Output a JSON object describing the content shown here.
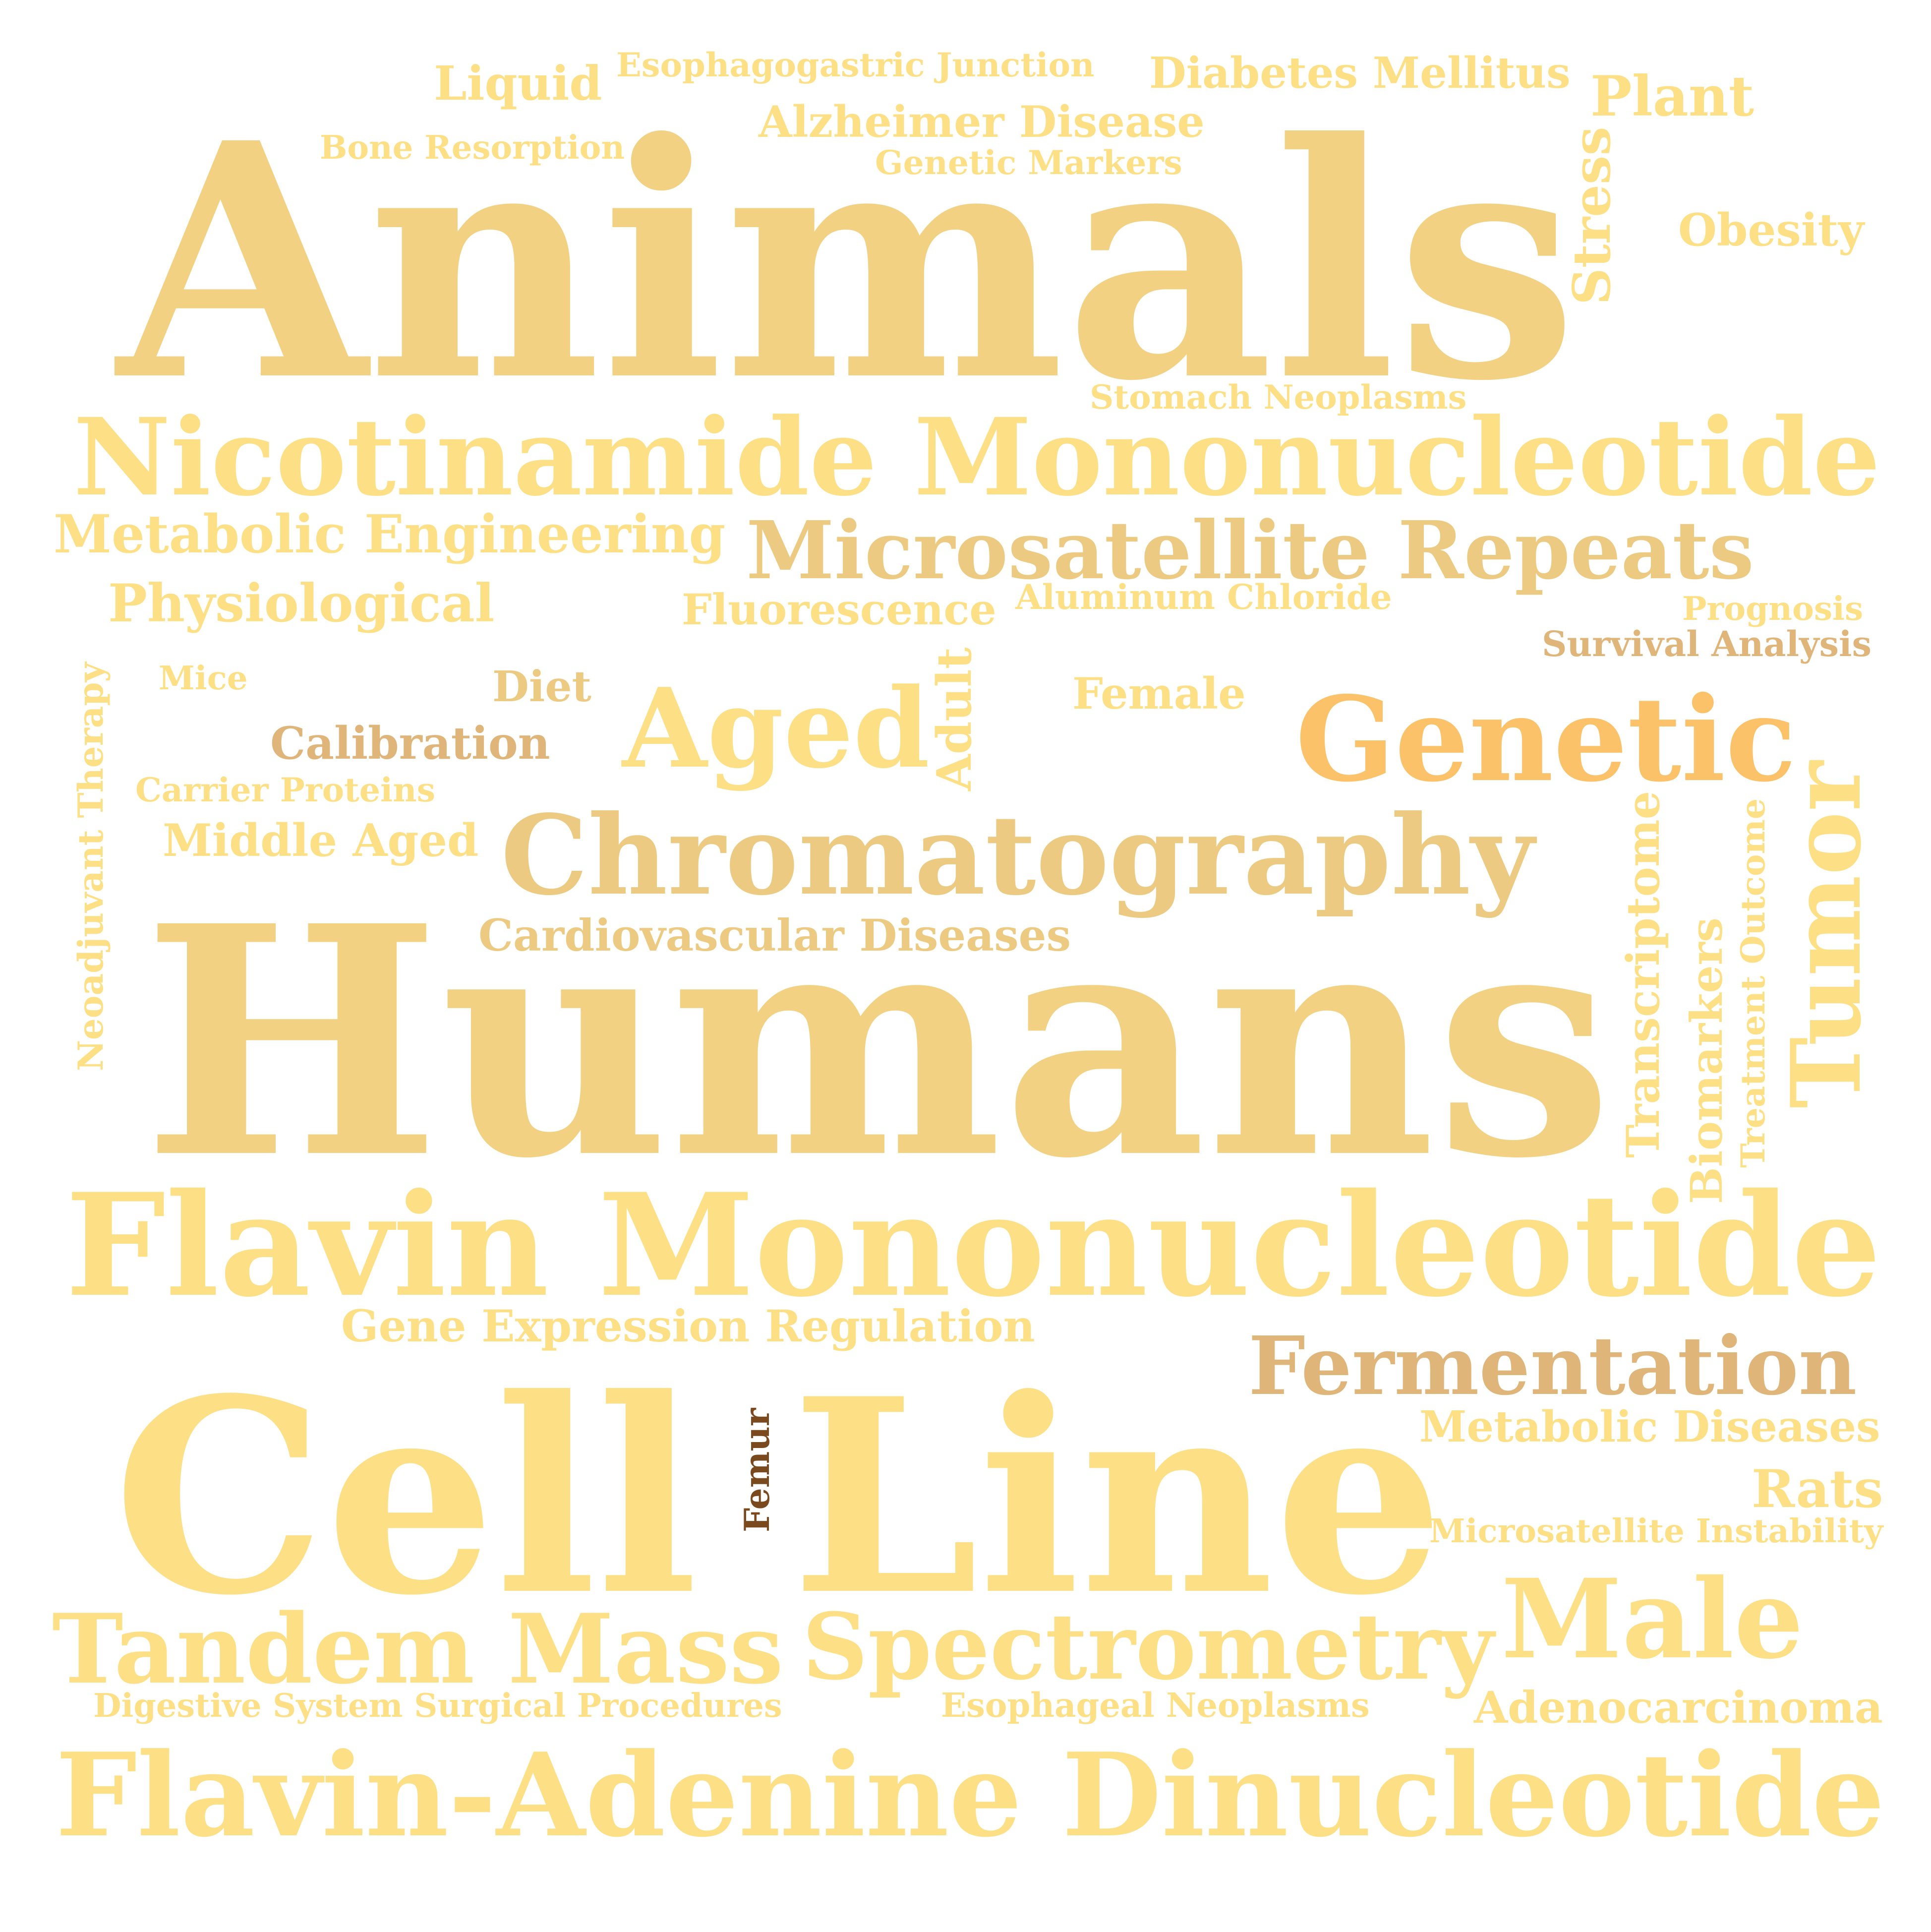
{
  "background": "#ffffff",
  "words": [
    {
      "text": "Animals",
      "color": "#f2d183",
      "orientation": "horizontal"
    },
    {
      "text": "Humans",
      "color": "#f2d183",
      "orientation": "horizontal"
    },
    {
      "text": "Cell Line",
      "color": "#fde086",
      "orientation": "horizontal"
    },
    {
      "text": "Flavin Mononucleotide",
      "color": "#fde086",
      "orientation": "horizontal"
    },
    {
      "text": "Nicotinamide Mononucleotide",
      "color": "#fde086",
      "orientation": "horizontal"
    },
    {
      "text": "Flavin-Adenine Dinucleotide",
      "color": "#fde086",
      "orientation": "horizontal"
    },
    {
      "text": "Chromatography",
      "color": "#edca82",
      "orientation": "horizontal"
    },
    {
      "text": "Genetic",
      "color": "#fbc26a",
      "orientation": "horizontal"
    },
    {
      "text": "Tandem Mass",
      "color": "#fde086",
      "orientation": "horizontal"
    },
    {
      "text": "Spectrometry",
      "color": "#fde086",
      "orientation": "horizontal"
    },
    {
      "text": "Microsatellite Repeats",
      "color": "#edca82",
      "orientation": "horizontal"
    },
    {
      "text": "Male",
      "color": "#fde086",
      "orientation": "horizontal"
    },
    {
      "text": "Aged",
      "color": "#fde086",
      "orientation": "horizontal"
    },
    {
      "text": "Fermentation",
      "color": "#dfb57a",
      "orientation": "horizontal"
    },
    {
      "text": "Tumor",
      "color": "#fde086",
      "orientation": "vertical"
    },
    {
      "text": "Metabolic Engineering",
      "color": "#fde086",
      "orientation": "horizontal"
    },
    {
      "text": "Physiological",
      "color": "#fde086",
      "orientation": "horizontal"
    },
    {
      "text": "Gene Expression Regulation",
      "color": "#fde086",
      "orientation": "horizontal"
    },
    {
      "text": "Diabetes Mellitus",
      "color": "#fde086",
      "orientation": "horizontal"
    },
    {
      "text": "Plant",
      "color": "#fde086",
      "orientation": "horizontal"
    },
    {
      "text": "Alzheimer Disease",
      "color": "#fde086",
      "orientation": "horizontal"
    },
    {
      "text": "Liquid",
      "color": "#fde086",
      "orientation": "horizontal"
    },
    {
      "text": "Metabolic Diseases",
      "color": "#fde086",
      "orientation": "horizontal"
    },
    {
      "text": "Adenocarcinoma",
      "color": "#fde086",
      "orientation": "horizontal"
    },
    {
      "text": "Rats",
      "color": "#fde086",
      "orientation": "horizontal"
    },
    {
      "text": "Cardiovascular Diseases",
      "color": "#edca82",
      "orientation": "horizontal"
    },
    {
      "text": "Middle Aged",
      "color": "#fde086",
      "orientation": "horizontal"
    },
    {
      "text": "Calibration",
      "color": "#dfb57a",
      "orientation": "horizontal"
    },
    {
      "text": "Fluorescence",
      "color": "#fde086",
      "orientation": "horizontal"
    },
    {
      "text": "Obesity",
      "color": "#fde086",
      "orientation": "horizontal"
    },
    {
      "text": "Female",
      "color": "#fde086",
      "orientation": "horizontal"
    },
    {
      "text": "Diet",
      "color": "#edca82",
      "orientation": "horizontal"
    },
    {
      "text": "Stress",
      "color": "#fde086",
      "orientation": "vertical"
    },
    {
      "text": "Adult",
      "color": "#fde086",
      "orientation": "vertical"
    },
    {
      "text": "Transcriptome",
      "color": "#fde086",
      "orientation": "vertical"
    },
    {
      "text": "Biomarkers",
      "color": "#fde086",
      "orientation": "vertical"
    },
    {
      "text": "Esophagogastric Junction",
      "color": "#fde086",
      "orientation": "horizontal"
    },
    {
      "text": "Bone Resorption",
      "color": "#fde086",
      "orientation": "horizontal"
    },
    {
      "text": "Genetic Markers",
      "color": "#fde086",
      "orientation": "horizontal"
    },
    {
      "text": "Stomach Neoplasms",
      "color": "#fde086",
      "orientation": "horizontal"
    },
    {
      "text": "Aluminum Chloride",
      "color": "#fde086",
      "orientation": "horizontal"
    },
    {
      "text": "Prognosis",
      "color": "#fde086",
      "orientation": "horizontal"
    },
    {
      "text": "Survival Analysis",
      "color": "#dfb57a",
      "orientation": "horizontal"
    },
    {
      "text": "Mice",
      "color": "#fde086",
      "orientation": "horizontal"
    },
    {
      "text": "Carrier Proteins",
      "color": "#fde086",
      "orientation": "horizontal"
    },
    {
      "text": "Neoadjuvant Therapy",
      "color": "#fde086",
      "orientation": "vertical"
    },
    {
      "text": "Treatment Outcome",
      "color": "#fde086",
      "orientation": "vertical"
    },
    {
      "text": "Microsatellite Instability",
      "color": "#fde086",
      "orientation": "horizontal"
    },
    {
      "text": "Digestive System Surgical Procedures",
      "color": "#fde086",
      "orientation": "horizontal"
    },
    {
      "text": "Esophageal Neoplasms",
      "color": "#fde086",
      "orientation": "horizontal"
    },
    {
      "text": "Femur",
      "color": "#7a4a1e",
      "orientation": "vertical"
    }
  ]
}
